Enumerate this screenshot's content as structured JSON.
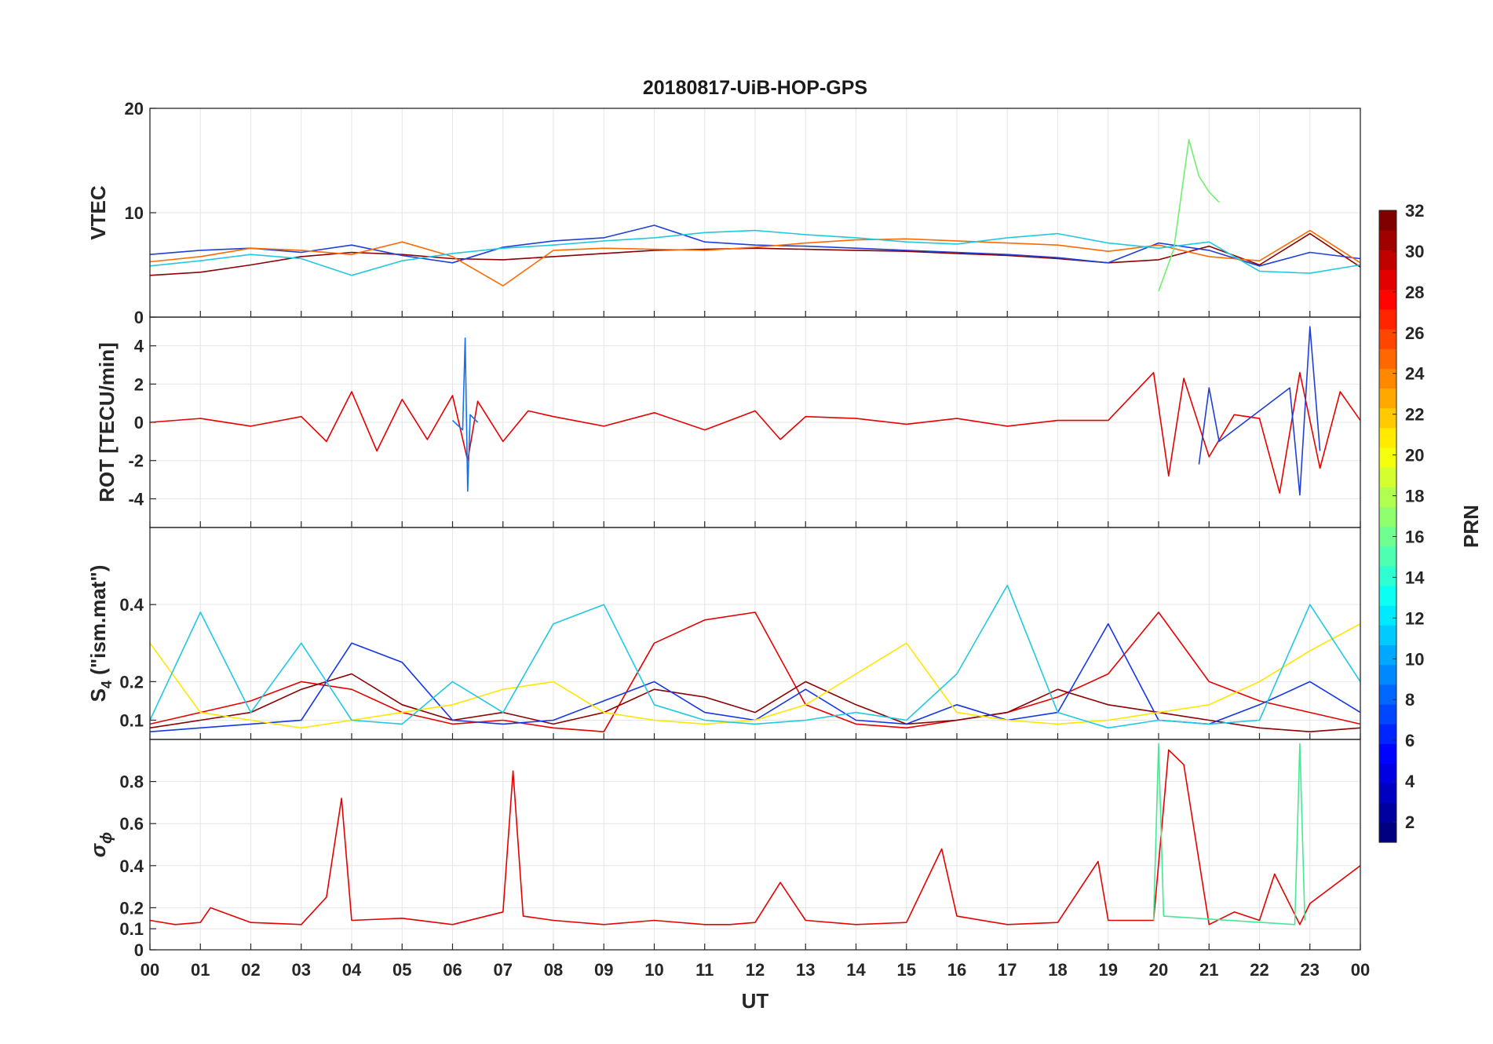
{
  "chart_data": {
    "type": "line",
    "title": "20180817-UiB-HOP-GPS",
    "xlabel": "UT",
    "x_ticks": [
      "00",
      "01",
      "02",
      "03",
      "04",
      "05",
      "06",
      "07",
      "08",
      "09",
      "10",
      "11",
      "12",
      "13",
      "14",
      "15",
      "16",
      "17",
      "18",
      "19",
      "20",
      "21",
      "22",
      "23",
      "00"
    ],
    "xlim_hours": [
      0,
      24
    ],
    "panels": [
      {
        "id": "vtec",
        "ylabel": "VTEC",
        "ylim": [
          0,
          20
        ],
        "y_ticks": [
          0,
          10,
          20
        ],
        "series": [
          {
            "prn": 30,
            "color": "#8b0000",
            "x": [
              0,
              1,
              2,
              3,
              4,
              5,
              6,
              7,
              8,
              9,
              10,
              11,
              12,
              13,
              14,
              15,
              16,
              17,
              18,
              19,
              20,
              21,
              22,
              23,
              24
            ],
            "values": [
              4.0,
              4.3,
              5.0,
              5.8,
              6.2,
              6.0,
              5.6,
              5.5,
              5.8,
              6.1,
              6.4,
              6.5,
              6.6,
              6.5,
              6.4,
              6.3,
              6.1,
              5.9,
              5.6,
              5.2,
              5.5,
              6.8,
              5.0,
              8.0,
              4.8
            ]
          },
          {
            "prn": 7,
            "color": "#1f3fd8",
            "x": [
              0,
              1,
              2,
              3,
              4,
              5,
              6,
              7,
              8,
              9,
              10,
              11,
              12,
              13,
              14,
              15,
              16,
              17,
              18,
              19,
              20,
              21,
              22,
              23,
              24
            ],
            "values": [
              6.0,
              6.4,
              6.6,
              6.2,
              6.9,
              5.9,
              5.2,
              6.7,
              7.3,
              7.6,
              8.8,
              7.2,
              6.9,
              6.8,
              6.6,
              6.4,
              6.2,
              6.0,
              5.7,
              5.2,
              7.1,
              6.4,
              4.9,
              6.2,
              5.6
            ]
          },
          {
            "prn": 26,
            "color": "#ff6a00",
            "x": [
              0,
              1,
              2,
              3,
              4,
              5,
              6,
              7,
              8,
              9,
              10,
              11,
              12,
              13,
              14,
              15,
              16,
              17,
              18,
              19,
              20,
              21,
              22,
              23,
              24
            ],
            "values": [
              5.3,
              5.8,
              6.6,
              6.4,
              6.0,
              7.2,
              5.8,
              3.0,
              6.4,
              6.6,
              6.5,
              6.4,
              6.7,
              7.1,
              7.4,
              7.5,
              7.3,
              7.1,
              6.9,
              6.3,
              6.9,
              5.8,
              5.4,
              8.3,
              5.2
            ]
          },
          {
            "prn": 12,
            "color": "#21c9e0",
            "x": [
              0,
              1,
              2,
              3,
              4,
              5,
              6,
              7,
              8,
              9,
              10,
              11,
              12,
              13,
              14,
              15,
              16,
              17,
              18,
              19,
              20,
              21,
              22,
              23,
              24
            ],
            "values": [
              4.9,
              5.4,
              6.0,
              5.6,
              4.0,
              5.4,
              6.1,
              6.6,
              6.9,
              7.3,
              7.6,
              8.1,
              8.3,
              7.9,
              7.6,
              7.2,
              7.0,
              7.6,
              8.0,
              7.1,
              6.6,
              7.2,
              4.4,
              4.2,
              5.0
            ]
          },
          {
            "prn": 16,
            "color": "#6ef06e",
            "x": [
              20.0,
              20.3,
              20.6,
              20.8,
              21.0,
              21.2
            ],
            "values": [
              2.5,
              6.5,
              17.0,
              13.5,
              12.0,
              11.0
            ]
          }
        ]
      },
      {
        "id": "rot",
        "ylabel": "ROT [TECU/min]",
        "ylim": [
          -5.5,
          5.5
        ],
        "y_ticks": [
          -4,
          -2,
          0,
          2,
          4
        ],
        "series": [
          {
            "prn": 28,
            "color": "#e60000",
            "x": [
              0,
              1,
              2,
              3,
              3.5,
              4,
              4.5,
              5,
              5.5,
              6,
              6.3,
              6.5,
              7,
              7.5,
              8,
              9,
              10,
              11,
              12,
              12.5,
              13,
              14,
              15,
              16,
              17,
              18,
              19,
              19.9,
              20.2,
              20.5,
              21,
              21.5,
              22,
              22.4,
              22.8,
              23.2,
              23.6,
              24
            ],
            "values": [
              0,
              0.2,
              -0.2,
              0.3,
              -1.0,
              1.6,
              -1.5,
              1.2,
              -0.9,
              1.4,
              -2.0,
              1.1,
              -1.0,
              0.6,
              0.3,
              -0.2,
              0.5,
              -0.4,
              0.6,
              -0.9,
              0.3,
              0.2,
              -0.1,
              0.2,
              -0.2,
              0.1,
              0.1,
              2.6,
              -2.8,
              2.3,
              -1.8,
              0.4,
              0.2,
              -3.7,
              2.6,
              -2.4,
              1.6,
              0.1
            ]
          },
          {
            "prn": 8,
            "color": "#1570f0",
            "x": [
              6.0,
              6.2,
              6.25,
              6.3,
              6.35,
              6.5
            ],
            "values": [
              0.1,
              -0.4,
              4.4,
              -3.6,
              0.4,
              0.0
            ]
          },
          {
            "prn": 7,
            "color": "#1f3fd8",
            "x": [
              20.8,
              21.0,
              21.2,
              22.6,
              22.8,
              23.0,
              23.2
            ],
            "values": [
              -2.2,
              1.8,
              -1.0,
              1.8,
              -3.8,
              5.0,
              -1.5
            ]
          }
        ]
      },
      {
        "id": "s4",
        "ylabel": "S4 (\"ism.mat\")",
        "ylabel_main": "S",
        "ylabel_sub": "4",
        "ylabel_rest": " (\"ism.mat\")",
        "ylim": [
          0.05,
          0.6
        ],
        "y_ticks": [
          0.1,
          0.2,
          0.4
        ],
        "series": [
          {
            "prn": 28,
            "color": "#e60000",
            "x": [
              0,
              1,
              2,
              3,
              4,
              5,
              6,
              7,
              8,
              9,
              10,
              11,
              12,
              13,
              14,
              15,
              16,
              17,
              18,
              19,
              20,
              21,
              22,
              23,
              24
            ],
            "values": [
              0.09,
              0.12,
              0.15,
              0.2,
              0.18,
              0.12,
              0.09,
              0.1,
              0.08,
              0.07,
              0.3,
              0.36,
              0.38,
              0.14,
              0.09,
              0.08,
              0.1,
              0.12,
              0.16,
              0.22,
              0.38,
              0.2,
              0.15,
              0.12,
              0.09
            ]
          },
          {
            "prn": 31,
            "color": "#8b0000",
            "x": [
              0,
              1,
              2,
              3,
              4,
              5,
              6,
              7,
              8,
              9,
              10,
              11,
              12,
              13,
              14,
              15,
              16,
              17,
              18,
              19,
              20,
              21,
              22,
              23,
              24
            ],
            "values": [
              0.08,
              0.1,
              0.12,
              0.18,
              0.22,
              0.14,
              0.1,
              0.12,
              0.09,
              0.12,
              0.18,
              0.16,
              0.12,
              0.2,
              0.14,
              0.09,
              0.1,
              0.12,
              0.18,
              0.14,
              0.12,
              0.1,
              0.08,
              0.07,
              0.08
            ]
          },
          {
            "prn": 6,
            "color": "#1436e8",
            "x": [
              0,
              1,
              2,
              3,
              4,
              5,
              6,
              7,
              8,
              9,
              10,
              11,
              12,
              13,
              14,
              15,
              16,
              17,
              18,
              19,
              20,
              21,
              22,
              23,
              24
            ],
            "values": [
              0.07,
              0.08,
              0.09,
              0.1,
              0.3,
              0.25,
              0.1,
              0.09,
              0.1,
              0.15,
              0.2,
              0.12,
              0.1,
              0.18,
              0.1,
              0.09,
              0.14,
              0.1,
              0.12,
              0.35,
              0.1,
              0.09,
              0.14,
              0.2,
              0.12
            ]
          },
          {
            "prn": 20,
            "color": "#ffe600",
            "x": [
              0,
              1,
              2,
              3,
              4,
              5,
              6,
              7,
              8,
              9,
              10,
              11,
              12,
              13,
              14,
              15,
              16,
              17,
              18,
              19,
              20,
              21,
              22,
              23,
              24
            ],
            "values": [
              0.3,
              0.12,
              0.1,
              0.08,
              0.1,
              0.12,
              0.14,
              0.18,
              0.2,
              0.12,
              0.1,
              0.09,
              0.1,
              0.14,
              0.22,
              0.3,
              0.12,
              0.1,
              0.09,
              0.1,
              0.12,
              0.14,
              0.2,
              0.28,
              0.35
            ]
          },
          {
            "prn": 12,
            "color": "#21c9e0",
            "x": [
              0,
              1,
              2,
              3,
              4,
              5,
              6,
              7,
              8,
              9,
              10,
              11,
              12,
              13,
              14,
              15,
              16,
              17,
              18,
              19,
              20,
              21,
              22,
              23,
              24
            ],
            "values": [
              0.1,
              0.38,
              0.12,
              0.3,
              0.1,
              0.09,
              0.2,
              0.12,
              0.35,
              0.4,
              0.14,
              0.1,
              0.09,
              0.1,
              0.12,
              0.1,
              0.22,
              0.45,
              0.12,
              0.08,
              0.1,
              0.09,
              0.1,
              0.4,
              0.2
            ]
          }
        ]
      },
      {
        "id": "sigma_phi",
        "ylabel": "σϕ",
        "ylim": [
          0,
          1
        ],
        "y_ticks": [
          0,
          0.1,
          0.2,
          0.4,
          0.6,
          0.8
        ],
        "series": [
          {
            "prn": 28,
            "color": "#e60000",
            "x": [
              0,
              0.5,
              1,
              1.2,
              2,
              3,
              3.5,
              3.8,
              4,
              5,
              6,
              7,
              7.2,
              7.4,
              8,
              9,
              10,
              11,
              11.5,
              12,
              12.5,
              13,
              14,
              15,
              15.7,
              16,
              17,
              18,
              18.8,
              19,
              19.9,
              20.2,
              20.5,
              21,
              21.5,
              22,
              22.3,
              22.8,
              23,
              24
            ],
            "values": [
              0.14,
              0.12,
              0.13,
              0.2,
              0.13,
              0.12,
              0.25,
              0.72,
              0.14,
              0.15,
              0.12,
              0.18,
              0.85,
              0.16,
              0.14,
              0.12,
              0.14,
              0.12,
              0.12,
              0.13,
              0.32,
              0.14,
              0.12,
              0.13,
              0.48,
              0.16,
              0.12,
              0.13,
              0.42,
              0.14,
              0.14,
              0.95,
              0.88,
              0.12,
              0.18,
              0.14,
              0.36,
              0.12,
              0.22,
              0.4
            ]
          },
          {
            "prn": 15,
            "color": "#46e896",
            "x": [
              19.9,
              20.0,
              20.1,
              22.7,
              22.8,
              22.9
            ],
            "values": [
              0.14,
              0.98,
              0.16,
              0.12,
              0.98,
              0.14
            ]
          }
        ]
      }
    ],
    "colorbar": {
      "label": "PRN",
      "range": [
        1,
        32
      ],
      "ticks": [
        2,
        4,
        6,
        8,
        10,
        12,
        14,
        16,
        18,
        20,
        22,
        24,
        26,
        28,
        30,
        32
      ],
      "colormap": "jet"
    }
  }
}
